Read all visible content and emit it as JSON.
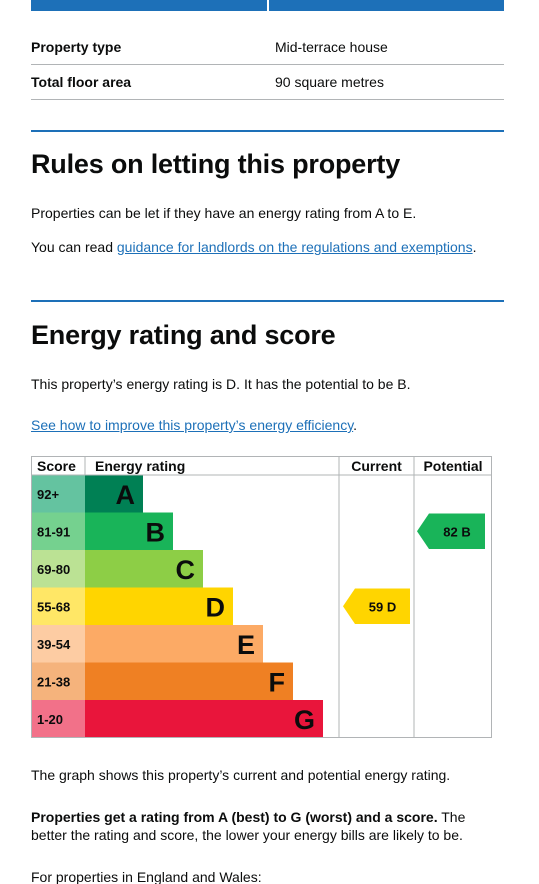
{
  "summary": {
    "rows": [
      {
        "key": "Property type",
        "value": "Mid-terrace house"
      },
      {
        "key": "Total floor area",
        "value": "90 square metres"
      }
    ]
  },
  "letting": {
    "heading": "Rules on letting this property",
    "para1": "Properties can be let if they have an energy rating from A to E.",
    "para2_prefix": "You can read ",
    "para2_link": "guidance for landlords on the regulations and exemptions",
    "para2_suffix": "."
  },
  "energy": {
    "heading": "Energy rating and score",
    "para1": "This property’s energy rating is D. It has the potential to be B.",
    "link": "See how to improve this property’s energy efficiency",
    "link_suffix": ".",
    "graph_note": "The graph shows this property’s current and potential energy rating.",
    "bold_text": "Properties get a rating from A (best) to G (worst) and a score.",
    "rest_text": " The better the rating and score, the lower your energy bills are likely to be.",
    "england_wales": "For properties in England and Wales:"
  },
  "chart_data": {
    "type": "bar",
    "headers": {
      "score": "Score",
      "rating": "Energy rating",
      "current": "Current",
      "potential": "Potential"
    },
    "bands": [
      {
        "score": "92+",
        "letter": "A",
        "color": "#008054",
        "score_bg": "#64c3a0"
      },
      {
        "score": "81-91",
        "letter": "B",
        "color": "#19b459",
        "score_bg": "#75d18f"
      },
      {
        "score": "69-80",
        "letter": "C",
        "color": "#8dce46",
        "score_bg": "#bbe294"
      },
      {
        "score": "55-68",
        "letter": "D",
        "color": "#ffd500",
        "score_bg": "#ffe766"
      },
      {
        "score": "39-54",
        "letter": "E",
        "color": "#fcaa65",
        "score_bg": "#fdcca3"
      },
      {
        "score": "21-38",
        "letter": "F",
        "color": "#ef8023",
        "score_bg": "#f5b37c"
      },
      {
        "score": "1-20",
        "letter": "G",
        "color": "#e9153b",
        "score_bg": "#f27189"
      }
    ],
    "current": {
      "value": 59,
      "letter": "D",
      "label": "59 D",
      "color": "#ffd500"
    },
    "potential": {
      "value": 82,
      "letter": "B",
      "label": "82 B",
      "color": "#19b459"
    }
  }
}
